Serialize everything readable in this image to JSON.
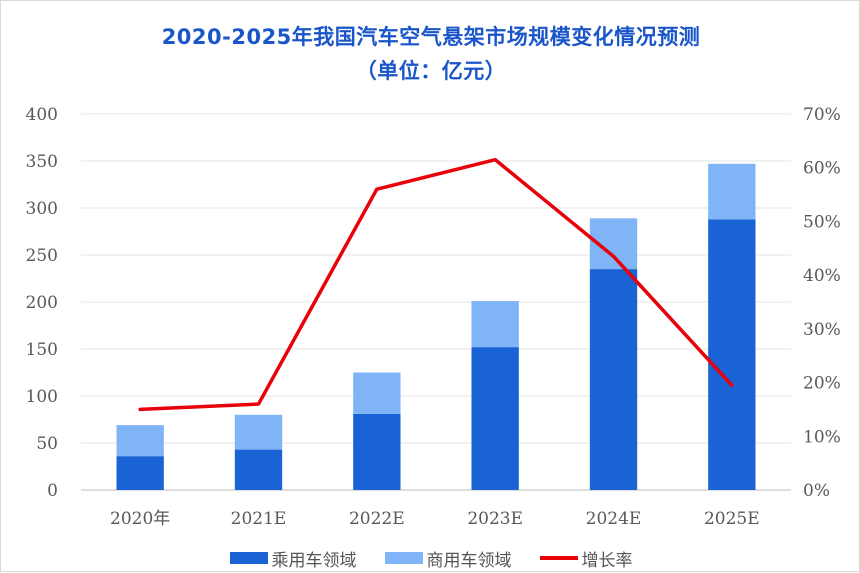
{
  "chart_data": {
    "type": "bar",
    "stacked": true,
    "title": "2020-2025年我国汽车空气悬架市场规模变化情况预测",
    "subtitle": "（单位：亿元）",
    "categories": [
      "2020年",
      "2021E",
      "2022E",
      "2023E",
      "2024E",
      "2025E"
    ],
    "series": [
      {
        "name": "乘用车领域",
        "type": "bar",
        "axis": "left",
        "color": "#1a63d4",
        "values": [
          36,
          43,
          81,
          152,
          235,
          288
        ]
      },
      {
        "name": "商用车领域",
        "type": "bar",
        "axis": "left",
        "color": "#7fb5f7",
        "values": [
          33,
          37,
          44,
          49,
          54,
          59
        ]
      },
      {
        "name": "增长率",
        "type": "line",
        "axis": "right",
        "color": "#e8000b",
        "values": [
          0.15,
          0.16,
          0.56,
          0.615,
          0.435,
          0.195
        ]
      }
    ],
    "y_left": {
      "min": 0,
      "max": 400,
      "step": 50,
      "ticks": [
        "0",
        "50",
        "100",
        "150",
        "200",
        "250",
        "300",
        "350",
        "400"
      ]
    },
    "y_right": {
      "min": 0,
      "max": 0.7,
      "step": 0.1,
      "ticks": [
        "0%",
        "10%",
        "20%",
        "30%",
        "40%",
        "50%",
        "60%",
        "70%"
      ]
    },
    "grid": true,
    "legend_position": "bottom"
  }
}
